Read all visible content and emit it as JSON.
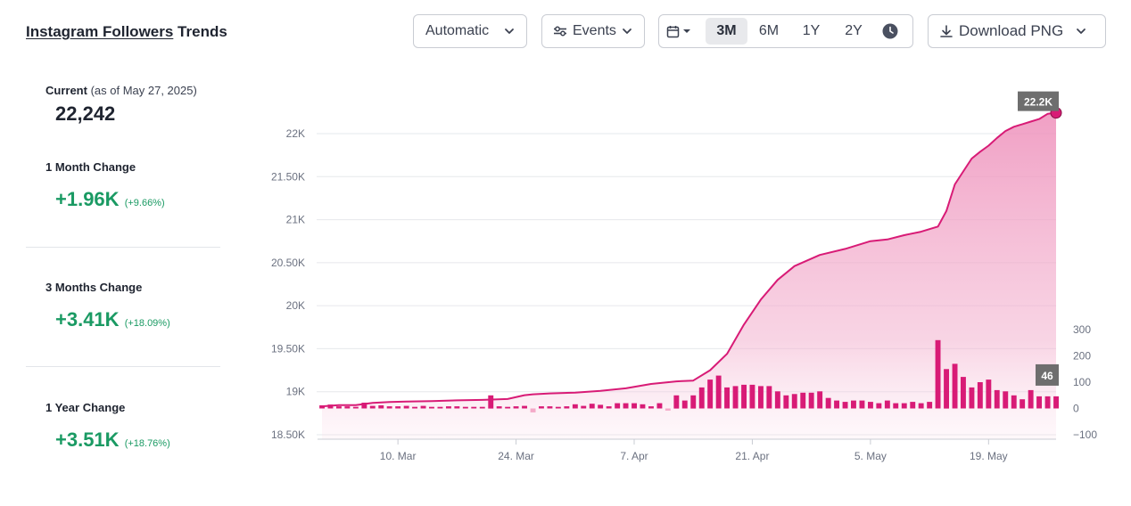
{
  "header": {
    "title_brand": "Instagram Followers",
    "title_rest": " Trends",
    "granularity_label": "Automatic",
    "events_label": "Events",
    "range_options": [
      "3M",
      "6M",
      "1Y",
      "2Y"
    ],
    "active_range": "3M",
    "download_label": "Download PNG",
    "icons": {
      "chevron": "chevron-down-icon",
      "events": "sliders-icon",
      "calendar": "calendar-icon",
      "clock": "clock-icon",
      "download": "download-icon"
    }
  },
  "stats": {
    "current_label": "Current",
    "current_asof": "(as of May 27, 2025)",
    "current_value": "22,242",
    "month": {
      "label": "1 Month Change",
      "value": "+1.96K",
      "pct": "(+9.66%)"
    },
    "three_months": {
      "label": "3 Months Change",
      "value": "+3.41K",
      "pct": "(+18.09%)"
    },
    "year": {
      "label": "1 Year Change",
      "value": "+3.51K",
      "pct": "(+18.76%)"
    }
  },
  "colors": {
    "line": "#d81b76",
    "area": "#ee8fba",
    "bars": "#d81b76",
    "negative_bar": "#f4a9c8",
    "positive_text": "#1a9a63",
    "tooltip_bg": "#6e6e6e"
  },
  "chart_data": {
    "type": "line+bar",
    "left_axis": {
      "ticks": [
        "22K",
        "21.50K",
        "21K",
        "20.50K",
        "20K",
        "19.50K",
        "19K",
        "18.50K"
      ],
      "tick_values": [
        22000,
        21500,
        21000,
        20500,
        20000,
        19500,
        19000,
        18500
      ],
      "range": [
        18500,
        22000
      ]
    },
    "right_axis": {
      "ticks": [
        "300",
        "200",
        "100",
        "0",
        "−100"
      ],
      "tick_values": [
        300,
        200,
        100,
        0,
        -100
      ],
      "range": [
        -100,
        300
      ]
    },
    "x_axis": {
      "tick_labels": [
        "10. Mar",
        "24. Mar",
        "7. Apr",
        "21. Apr",
        "5. May",
        "19. May"
      ],
      "tick_days": [
        10,
        24,
        38,
        52,
        66,
        80
      ],
      "day_range": [
        1,
        88
      ]
    },
    "series": [
      {
        "name": "Followers",
        "kind": "line-area",
        "days": [
          1,
          3,
          5,
          7,
          9,
          11,
          14,
          17,
          20,
          23,
          25,
          26,
          28,
          31,
          34,
          37,
          40,
          43,
          45,
          47,
          49,
          51,
          53,
          55,
          57,
          60,
          63,
          66,
          68,
          70,
          72,
          74,
          75,
          76,
          77,
          78,
          79,
          80,
          81,
          82,
          83,
          84,
          85,
          86,
          87,
          88
        ],
        "values": [
          18830,
          18845,
          18845,
          18870,
          18880,
          18885,
          18890,
          18900,
          18905,
          18915,
          18960,
          18970,
          18980,
          18990,
          19010,
          19040,
          19090,
          19120,
          19130,
          19250,
          19440,
          19780,
          20070,
          20300,
          20460,
          20590,
          20660,
          20750,
          20770,
          20820,
          20860,
          20920,
          21100,
          21410,
          21560,
          21710,
          21790,
          21860,
          21950,
          22030,
          22080,
          22110,
          22140,
          22170,
          22230,
          22242
        ]
      },
      {
        "name": "Daily change",
        "kind": "bars",
        "days": [
          1,
          2,
          3,
          4,
          5,
          6,
          7,
          8,
          9,
          10,
          11,
          12,
          13,
          14,
          15,
          16,
          17,
          18,
          19,
          20,
          21,
          22,
          23,
          24,
          25,
          26,
          27,
          28,
          29,
          30,
          31,
          32,
          33,
          34,
          35,
          36,
          37,
          38,
          39,
          40,
          41,
          42,
          43,
          44,
          45,
          46,
          47,
          48,
          49,
          50,
          51,
          52,
          53,
          54,
          55,
          56,
          57,
          58,
          59,
          60,
          61,
          62,
          63,
          64,
          65,
          66,
          67,
          68,
          69,
          70,
          71,
          72,
          73,
          74,
          75,
          76,
          77,
          78,
          79,
          80,
          81,
          82,
          83,
          84,
          85,
          86,
          87,
          88
        ],
        "values": [
          12,
          15,
          8,
          8,
          6,
          22,
          10,
          12,
          8,
          8,
          10,
          6,
          10,
          6,
          6,
          8,
          8,
          6,
          6,
          6,
          50,
          8,
          6,
          8,
          10,
          -15,
          8,
          8,
          6,
          8,
          16,
          10,
          18,
          14,
          8,
          20,
          20,
          20,
          16,
          8,
          20,
          -8,
          50,
          30,
          50,
          80,
          110,
          125,
          80,
          85,
          90,
          90,
          85,
          85,
          65,
          50,
          55,
          60,
          60,
          65,
          40,
          30,
          25,
          30,
          30,
          25,
          20,
          30,
          20,
          20,
          25,
          20,
          25,
          260,
          150,
          170,
          120,
          80,
          100,
          110,
          70,
          65,
          50,
          35,
          70,
          46,
          46,
          46
        ]
      }
    ],
    "highlight": {
      "day": 88,
      "label": "22.2K",
      "bar_label": "46"
    }
  }
}
